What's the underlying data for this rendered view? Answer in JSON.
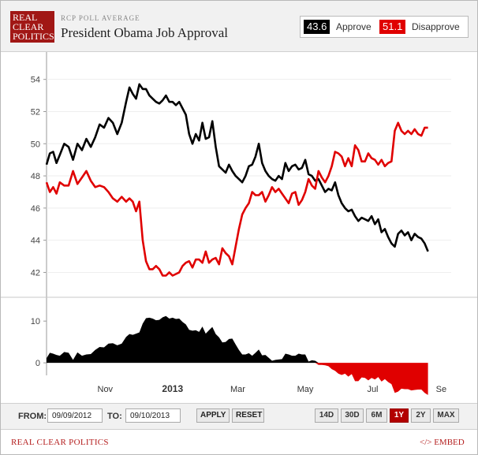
{
  "brand": {
    "logo_line1": "REAL",
    "logo_line2": "CLEAR",
    "logo_line3": "POLITICS",
    "logo_color": "#a11715"
  },
  "header": {
    "kicker": "RCP POLL AVERAGE",
    "title": "President Obama Job Approval"
  },
  "legend": {
    "approve_value": "43.6",
    "approve_label": "Approve",
    "approve_color": "#000000",
    "disapprove_value": "51.1",
    "disapprove_label": "Disapprove",
    "disapprove_color": "#e00000"
  },
  "chart_data": {
    "type": "line",
    "y_ticks": [
      "54",
      "52",
      "50",
      "48",
      "46",
      "44",
      "42"
    ],
    "ylim": [
      40.6,
      55.7
    ],
    "x_ticks": [
      "Nov",
      "2013",
      "Mar",
      "May",
      "Jul",
      "Se"
    ],
    "x_tick_days": [
      53,
      114,
      173,
      234,
      295,
      357
    ],
    "x_range_days": [
      0,
      366
    ],
    "series": [
      {
        "name": "Approve",
        "color": "#000000",
        "points": [
          [
            0,
            48.7
          ],
          [
            3,
            49.4
          ],
          [
            6,
            49.5
          ],
          [
            9,
            48.8
          ],
          [
            12,
            49.3
          ],
          [
            16,
            50.0
          ],
          [
            20,
            49.8
          ],
          [
            24,
            49.0
          ],
          [
            28,
            50.0
          ],
          [
            32,
            49.6
          ],
          [
            36,
            50.3
          ],
          [
            40,
            49.8
          ],
          [
            44,
            50.4
          ],
          [
            48,
            51.2
          ],
          [
            52,
            51.0
          ],
          [
            56,
            51.6
          ],
          [
            60,
            51.3
          ],
          [
            64,
            50.6
          ],
          [
            68,
            51.3
          ],
          [
            72,
            52.6
          ],
          [
            75,
            53.5
          ],
          [
            78,
            53.1
          ],
          [
            81,
            52.8
          ],
          [
            84,
            53.7
          ],
          [
            87,
            53.4
          ],
          [
            90,
            53.4
          ],
          [
            93,
            53.0
          ],
          [
            96,
            52.8
          ],
          [
            99,
            52.6
          ],
          [
            102,
            52.5
          ],
          [
            105,
            52.7
          ],
          [
            108,
            53.0
          ],
          [
            111,
            52.6
          ],
          [
            114,
            52.6
          ],
          [
            117,
            52.4
          ],
          [
            120,
            52.6
          ],
          [
            123,
            52.2
          ],
          [
            126,
            51.8
          ],
          [
            129,
            50.6
          ],
          [
            132,
            50.0
          ],
          [
            135,
            50.6
          ],
          [
            138,
            50.2
          ],
          [
            141,
            51.3
          ],
          [
            144,
            50.3
          ],
          [
            147,
            50.4
          ],
          [
            150,
            51.4
          ],
          [
            153,
            49.8
          ],
          [
            156,
            48.6
          ],
          [
            159,
            48.4
          ],
          [
            162,
            48.2
          ],
          [
            165,
            48.7
          ],
          [
            168,
            48.3
          ],
          [
            171,
            48.0
          ],
          [
            174,
            47.8
          ],
          [
            177,
            47.6
          ],
          [
            180,
            48.0
          ],
          [
            183,
            48.6
          ],
          [
            186,
            48.7
          ],
          [
            189,
            49.2
          ],
          [
            192,
            50.0
          ],
          [
            195,
            48.8
          ],
          [
            198,
            48.3
          ],
          [
            201,
            48.0
          ],
          [
            204,
            47.8
          ],
          [
            207,
            47.7
          ],
          [
            210,
            48.0
          ],
          [
            213,
            47.8
          ],
          [
            216,
            48.8
          ],
          [
            219,
            48.3
          ],
          [
            222,
            48.6
          ],
          [
            225,
            48.7
          ],
          [
            228,
            48.4
          ],
          [
            231,
            48.5
          ],
          [
            234,
            49.0
          ],
          [
            237,
            48.1
          ],
          [
            240,
            48.0
          ],
          [
            243,
            47.7
          ],
          [
            246,
            47.8
          ],
          [
            249,
            47.4
          ],
          [
            252,
            47.0
          ],
          [
            255,
            47.2
          ],
          [
            258,
            47.1
          ],
          [
            261,
            47.6
          ],
          [
            264,
            46.8
          ],
          [
            267,
            46.3
          ],
          [
            270,
            46.0
          ],
          [
            273,
            45.8
          ],
          [
            276,
            45.9
          ],
          [
            279,
            45.5
          ],
          [
            282,
            45.2
          ],
          [
            285,
            45.4
          ],
          [
            288,
            45.3
          ],
          [
            291,
            45.2
          ],
          [
            294,
            45.5
          ],
          [
            297,
            45.0
          ],
          [
            300,
            45.3
          ],
          [
            303,
            44.5
          ],
          [
            306,
            44.7
          ],
          [
            309,
            44.2
          ],
          [
            312,
            43.8
          ],
          [
            315,
            43.6
          ],
          [
            318,
            44.4
          ],
          [
            321,
            44.6
          ],
          [
            324,
            44.3
          ],
          [
            327,
            44.5
          ],
          [
            330,
            44.0
          ],
          [
            333,
            44.4
          ],
          [
            336,
            44.2
          ],
          [
            339,
            44.1
          ],
          [
            342,
            43.8
          ],
          [
            345,
            43.3
          ]
        ]
      },
      {
        "name": "Disapprove",
        "color": "#e00000",
        "points": [
          [
            0,
            47.6
          ],
          [
            3,
            47.0
          ],
          [
            6,
            47.3
          ],
          [
            9,
            46.9
          ],
          [
            12,
            47.6
          ],
          [
            16,
            47.4
          ],
          [
            20,
            47.4
          ],
          [
            24,
            48.3
          ],
          [
            28,
            47.5
          ],
          [
            32,
            47.9
          ],
          [
            36,
            48.3
          ],
          [
            40,
            47.7
          ],
          [
            44,
            47.3
          ],
          [
            48,
            47.4
          ],
          [
            52,
            47.3
          ],
          [
            56,
            47.0
          ],
          [
            60,
            46.6
          ],
          [
            64,
            46.4
          ],
          [
            68,
            46.7
          ],
          [
            72,
            46.4
          ],
          [
            75,
            46.6
          ],
          [
            78,
            46.4
          ],
          [
            81,
            45.8
          ],
          [
            84,
            46.4
          ],
          [
            87,
            44.0
          ],
          [
            90,
            42.7
          ],
          [
            93,
            42.2
          ],
          [
            96,
            42.2
          ],
          [
            99,
            42.4
          ],
          [
            102,
            42.2
          ],
          [
            105,
            41.8
          ],
          [
            108,
            41.8
          ],
          [
            111,
            42.0
          ],
          [
            114,
            41.8
          ],
          [
            117,
            41.9
          ],
          [
            120,
            42.0
          ],
          [
            123,
            42.4
          ],
          [
            126,
            42.6
          ],
          [
            129,
            42.7
          ],
          [
            132,
            42.3
          ],
          [
            135,
            42.8
          ],
          [
            138,
            42.8
          ],
          [
            141,
            42.6
          ],
          [
            144,
            43.3
          ],
          [
            147,
            42.6
          ],
          [
            150,
            42.8
          ],
          [
            153,
            42.9
          ],
          [
            156,
            42.5
          ],
          [
            159,
            43.5
          ],
          [
            162,
            43.2
          ],
          [
            165,
            43.0
          ],
          [
            168,
            42.5
          ],
          [
            171,
            43.6
          ],
          [
            174,
            44.7
          ],
          [
            177,
            45.6
          ],
          [
            180,
            46.0
          ],
          [
            183,
            46.3
          ],
          [
            186,
            47.0
          ],
          [
            189,
            46.8
          ],
          [
            192,
            46.8
          ],
          [
            195,
            47.0
          ],
          [
            198,
            46.4
          ],
          [
            201,
            46.8
          ],
          [
            204,
            47.3
          ],
          [
            207,
            47.0
          ],
          [
            210,
            47.2
          ],
          [
            213,
            46.9
          ],
          [
            216,
            46.6
          ],
          [
            219,
            46.3
          ],
          [
            222,
            46.9
          ],
          [
            225,
            47.0
          ],
          [
            228,
            46.2
          ],
          [
            231,
            46.5
          ],
          [
            234,
            47.0
          ],
          [
            237,
            47.8
          ],
          [
            240,
            47.4
          ],
          [
            243,
            47.2
          ],
          [
            246,
            48.3
          ],
          [
            249,
            47.9
          ],
          [
            252,
            47.6
          ],
          [
            255,
            48.0
          ],
          [
            258,
            48.6
          ],
          [
            261,
            49.5
          ],
          [
            264,
            49.4
          ],
          [
            267,
            49.2
          ],
          [
            270,
            48.6
          ],
          [
            273,
            49.1
          ],
          [
            276,
            48.6
          ],
          [
            279,
            49.9
          ],
          [
            282,
            49.6
          ],
          [
            285,
            48.9
          ],
          [
            288,
            48.9
          ],
          [
            291,
            49.4
          ],
          [
            294,
            49.1
          ],
          [
            297,
            49.0
          ],
          [
            300,
            48.7
          ],
          [
            303,
            49.0
          ],
          [
            306,
            48.6
          ],
          [
            309,
            48.8
          ],
          [
            312,
            48.9
          ],
          [
            315,
            50.8
          ],
          [
            318,
            51.3
          ],
          [
            321,
            50.8
          ],
          [
            324,
            50.6
          ],
          [
            327,
            50.8
          ],
          [
            330,
            50.6
          ],
          [
            333,
            50.9
          ],
          [
            336,
            50.6
          ],
          [
            339,
            50.5
          ],
          [
            342,
            51.0
          ],
          [
            345,
            51.0
          ]
        ]
      }
    ],
    "spread": {
      "y_ticks": [
        "10",
        "0"
      ],
      "ylim": [
        -3,
        14
      ],
      "positive_color": "#000000",
      "negative_color": "#e00000"
    }
  },
  "controls": {
    "from_label": "FROM:",
    "from_value": "09/09/2012",
    "to_label": "TO:",
    "to_value": "09/10/2013",
    "apply_label": "APPLY",
    "reset_label": "RESET",
    "ranges": [
      {
        "label": "14D",
        "active": false
      },
      {
        "label": "30D",
        "active": false
      },
      {
        "label": "6M",
        "active": false
      },
      {
        "label": "1Y",
        "active": true
      },
      {
        "label": "2Y",
        "active": false
      },
      {
        "label": "MAX",
        "active": false
      }
    ]
  },
  "footer": {
    "source_label": "REAL CLEAR POLITICS",
    "embed_label": "</> EMBED"
  }
}
